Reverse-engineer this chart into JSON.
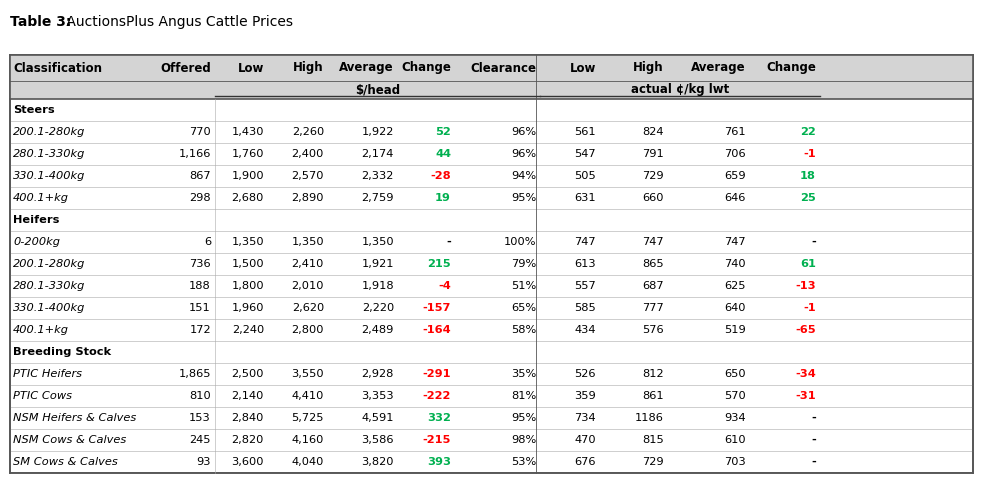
{
  "title_bold": "Table 3:",
  "title_normal": " AuctionsPlus Angus Cattle Prices",
  "groups": [
    {
      "name": "Steers",
      "italic": false,
      "bold": true,
      "header": true,
      "rows": []
    },
    {
      "name": "200.1-280kg",
      "italic": true,
      "bold": false,
      "header": false,
      "rows": [
        "770",
        "1,430",
        "2,260",
        "1,922",
        "52",
        "96%",
        "561",
        "824",
        "761",
        "22"
      ]
    },
    {
      "name": "280.1-330kg",
      "italic": true,
      "bold": false,
      "header": false,
      "rows": [
        "1,166",
        "1,760",
        "2,400",
        "2,174",
        "44",
        "96%",
        "547",
        "791",
        "706",
        "-1"
      ]
    },
    {
      "name": "330.1-400kg",
      "italic": true,
      "bold": false,
      "header": false,
      "rows": [
        "867",
        "1,900",
        "2,570",
        "2,332",
        "-28",
        "94%",
        "505",
        "729",
        "659",
        "18"
      ]
    },
    {
      "name": "400.1+kg",
      "italic": true,
      "bold": false,
      "header": false,
      "rows": [
        "298",
        "2,680",
        "2,890",
        "2,759",
        "19",
        "95%",
        "631",
        "660",
        "646",
        "25"
      ]
    },
    {
      "name": "Heifers",
      "italic": false,
      "bold": true,
      "header": true,
      "rows": []
    },
    {
      "name": "0-200kg",
      "italic": true,
      "bold": false,
      "header": false,
      "rows": [
        "6",
        "1,350",
        "1,350",
        "1,350",
        "-",
        "100%",
        "747",
        "747",
        "747",
        "-"
      ]
    },
    {
      "name": "200.1-280kg",
      "italic": true,
      "bold": false,
      "header": false,
      "rows": [
        "736",
        "1,500",
        "2,410",
        "1,921",
        "215",
        "79%",
        "613",
        "865",
        "740",
        "61"
      ]
    },
    {
      "name": "280.1-330kg",
      "italic": true,
      "bold": false,
      "header": false,
      "rows": [
        "188",
        "1,800",
        "2,010",
        "1,918",
        "-4",
        "51%",
        "557",
        "687",
        "625",
        "-13"
      ]
    },
    {
      "name": "330.1-400kg",
      "italic": true,
      "bold": false,
      "header": false,
      "rows": [
        "151",
        "1,960",
        "2,620",
        "2,220",
        "-157",
        "65%",
        "585",
        "777",
        "640",
        "-1"
      ]
    },
    {
      "name": "400.1+kg",
      "italic": true,
      "bold": false,
      "header": false,
      "rows": [
        "172",
        "2,240",
        "2,800",
        "2,489",
        "-164",
        "58%",
        "434",
        "576",
        "519",
        "-65"
      ]
    },
    {
      "name": "Breeding Stock",
      "italic": false,
      "bold": true,
      "header": true,
      "rows": []
    },
    {
      "name": "PTIC Heifers",
      "italic": true,
      "bold": false,
      "header": false,
      "rows": [
        "1,865",
        "2,500",
        "3,550",
        "2,928",
        "-291",
        "35%",
        "526",
        "812",
        "650",
        "-34"
      ]
    },
    {
      "name": "PTIC Cows",
      "italic": true,
      "bold": false,
      "header": false,
      "rows": [
        "810",
        "2,140",
        "4,410",
        "3,353",
        "-222",
        "81%",
        "359",
        "861",
        "570",
        "-31"
      ]
    },
    {
      "name": "NSM Heifers & Calves",
      "italic": true,
      "bold": false,
      "header": false,
      "rows": [
        "153",
        "2,840",
        "5,725",
        "4,591",
        "332",
        "95%",
        "734",
        "1186",
        "934",
        "-"
      ]
    },
    {
      "name": "NSM Cows & Calves",
      "italic": true,
      "bold": false,
      "header": false,
      "rows": [
        "245",
        "2,820",
        "4,160",
        "3,586",
        "-215",
        "98%",
        "470",
        "815",
        "610",
        "-"
      ]
    },
    {
      "name": "SM Cows & Calves",
      "italic": true,
      "bold": false,
      "header": false,
      "rows": [
        "93",
        "3,600",
        "4,040",
        "3,820",
        "393",
        "53%",
        "676",
        "729",
        "703",
        "-"
      ]
    }
  ],
  "change_col_idx": 4,
  "lwt_change_col_idx": 9,
  "change_head": [
    null,
    "green",
    "green",
    "red",
    "green",
    null,
    "black",
    "green",
    "red",
    "red",
    "red",
    null,
    "red",
    "red",
    "green",
    "red",
    "green"
  ],
  "change_lwt": [
    null,
    "green",
    "red",
    "green",
    "green",
    null,
    "black",
    "green",
    "red",
    "red",
    "red",
    null,
    "red",
    "red",
    "black",
    "black",
    "black"
  ],
  "col_headers": [
    "Classification",
    "Offered",
    "Low",
    "High",
    "Average",
    "Change",
    "Clearance",
    "Low",
    "High",
    "Average",
    "Change"
  ],
  "subheader1": "$/head",
  "subheader2": "actual ¢/kg lwt",
  "green": "#00b050",
  "red": "#ff0000",
  "header_bg": "#d4d4d4",
  "border_color": "#555555",
  "light_line": "#aaaaaa"
}
